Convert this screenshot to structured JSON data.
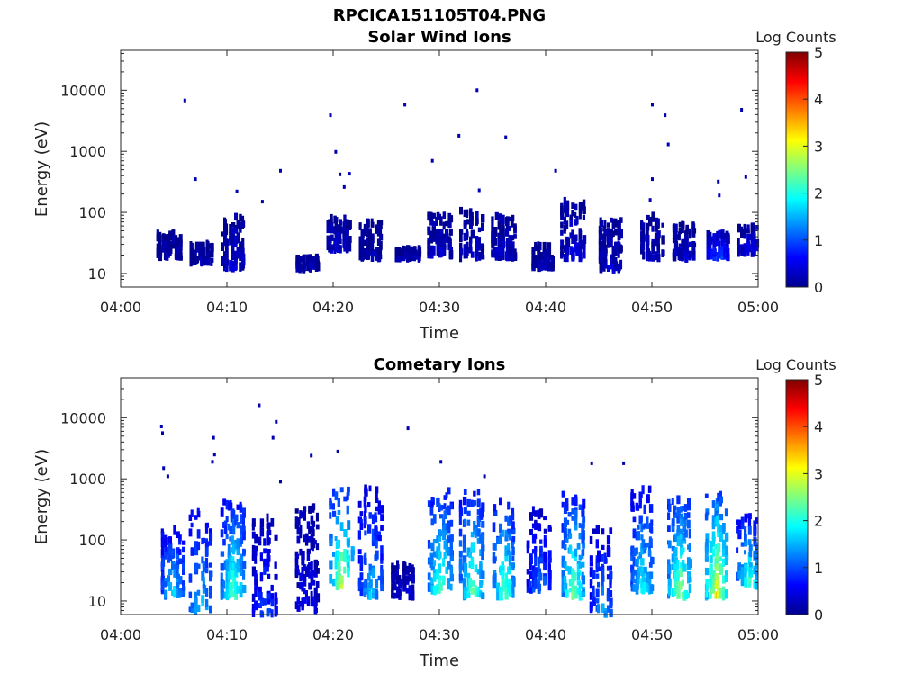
{
  "figure": {
    "title": "RPCICA151105T04.PNG"
  },
  "colorbar": {
    "label": "Log Counts",
    "range": [
      0,
      5
    ],
    "ticks": [
      "0",
      "1",
      "2",
      "3",
      "4",
      "5"
    ],
    "colormap": "jet"
  },
  "chart_data": [
    {
      "type": "heatmap",
      "title": "Solar Wind Ions",
      "xlabel": "Time",
      "ylabel": "Energy (eV)",
      "xlim": [
        "04:00",
        "05:00"
      ],
      "xticks": [
        "04:00",
        "04:10",
        "04:20",
        "04:30",
        "04:40",
        "04:50",
        "05:00"
      ],
      "yscale": "log",
      "ylim": [
        6,
        45000
      ],
      "yticks": [
        "10",
        "100",
        "1000",
        "10000"
      ],
      "clusters": [
        {
          "t": "04:04.5",
          "emin": 18,
          "emax": 45,
          "level": 0.2
        },
        {
          "t": "04:07.5",
          "emin": 15,
          "emax": 30,
          "level": 0.2
        },
        {
          "t": "04:10.5",
          "emin": 12,
          "emax": 95,
          "level": 0.3
        },
        {
          "t": "04:17.5",
          "emin": 12,
          "emax": 18,
          "level": 0.2
        },
        {
          "t": "04:20.5",
          "emin": 25,
          "emax": 85,
          "level": 0.3
        },
        {
          "t": "04:23.5",
          "emin": 18,
          "emax": 70,
          "level": 0.2
        },
        {
          "t": "04:27",
          "emin": 18,
          "emax": 25,
          "level": 0.2
        },
        {
          "t": "04:30",
          "emin": 20,
          "emax": 95,
          "level": 0.3
        },
        {
          "t": "04:33",
          "emin": 18,
          "emax": 110,
          "level": 0.3
        },
        {
          "t": "04:36",
          "emin": 18,
          "emax": 90,
          "level": 0.3
        },
        {
          "t": "04:39.7",
          "emin": 12,
          "emax": 30,
          "level": 0.2
        },
        {
          "t": "04:42.5",
          "emin": 18,
          "emax": 150,
          "level": 0.4
        },
        {
          "t": "04:46",
          "emin": 12,
          "emax": 75,
          "level": 0.3
        },
        {
          "t": "04:50",
          "emin": 18,
          "emax": 90,
          "level": 0.3
        },
        {
          "t": "04:53",
          "emin": 18,
          "emax": 65,
          "level": 0.3
        },
        {
          "t": "04:56.2",
          "emin": 18,
          "emax": 45,
          "level": 0.8
        },
        {
          "t": "04:59.2",
          "emin": 22,
          "emax": 60,
          "level": 0.4
        }
      ],
      "sparse_points": [
        {
          "t": "04:06",
          "e": 6800
        },
        {
          "t": "04:07",
          "e": 350
        },
        {
          "t": "04:10.9",
          "e": 220
        },
        {
          "t": "04:13.3",
          "e": 150
        },
        {
          "t": "04:15",
          "e": 480
        },
        {
          "t": "04:19.7",
          "e": 3900
        },
        {
          "t": "04:20.2",
          "e": 980
        },
        {
          "t": "04:20.6",
          "e": 420
        },
        {
          "t": "04:21.5",
          "e": 430
        },
        {
          "t": "04:21",
          "e": 260
        },
        {
          "t": "04:26.7",
          "e": 5800
        },
        {
          "t": "04:29.3",
          "e": 700
        },
        {
          "t": "04:31.8",
          "e": 1800
        },
        {
          "t": "04:33.5",
          "e": 10000
        },
        {
          "t": "04:33.7",
          "e": 230
        },
        {
          "t": "04:36.2",
          "e": 1700
        },
        {
          "t": "04:40.9",
          "e": 480
        },
        {
          "t": "04:50",
          "e": 5800
        },
        {
          "t": "04:50",
          "e": 350
        },
        {
          "t": "04:51.2",
          "e": 3900
        },
        {
          "t": "04:51.5",
          "e": 1300
        },
        {
          "t": "04:49.8",
          "e": 160
        },
        {
          "t": "04:56.2",
          "e": 320
        },
        {
          "t": "04:56.3",
          "e": 190
        },
        {
          "t": "04:58.4",
          "e": 4800
        },
        {
          "t": "04:58.8",
          "e": 380
        }
      ]
    },
    {
      "type": "heatmap",
      "title": "Cometary Ions",
      "xlabel": "Time",
      "ylabel": "Energy (eV)",
      "xlim": [
        "04:00",
        "05:00"
      ],
      "xticks": [
        "04:00",
        "04:10",
        "04:20",
        "04:30",
        "04:40",
        "04:50",
        "05:00"
      ],
      "yscale": "log",
      "ylim": [
        6,
        45000
      ],
      "yticks": [
        "10",
        "100",
        "1000",
        "10000"
      ],
      "clusters": [
        {
          "t": "04:04.8",
          "emin": 12,
          "emax": 150,
          "level": 1.5
        },
        {
          "t": "04:07.5",
          "emin": 7,
          "emax": 400,
          "level": 1.4
        },
        {
          "t": "04:10.5",
          "emin": 12,
          "emax": 450,
          "level": 1.9
        },
        {
          "t": "04:13.5",
          "emin": 6,
          "emax": 250,
          "level": 0.8
        },
        {
          "t": "04:17.5",
          "emin": 7,
          "emax": 350,
          "level": 0.5
        },
        {
          "t": "04:20.7",
          "emin": 18,
          "emax": 700,
          "level": 2.3
        },
        {
          "t": "04:23.5",
          "emin": 12,
          "emax": 700,
          "level": 1.3
        },
        {
          "t": "04:26.5",
          "emin": 12,
          "emax": 40,
          "level": 0.4
        },
        {
          "t": "04:30",
          "emin": 15,
          "emax": 700,
          "level": 1.9
        },
        {
          "t": "04:33",
          "emin": 12,
          "emax": 700,
          "level": 2.0
        },
        {
          "t": "04:36",
          "emin": 12,
          "emax": 450,
          "level": 1.9
        },
        {
          "t": "04:39.3",
          "emin": 15,
          "emax": 300,
          "level": 1.0
        },
        {
          "t": "04:42.5",
          "emin": 12,
          "emax": 600,
          "level": 2.0
        },
        {
          "t": "04:45.2",
          "emin": 6,
          "emax": 150,
          "level": 1.2
        },
        {
          "t": "04:49",
          "emin": 15,
          "emax": 700,
          "level": 1.6
        },
        {
          "t": "04:52.5",
          "emin": 12,
          "emax": 500,
          "level": 2.2
        },
        {
          "t": "04:56",
          "emin": 12,
          "emax": 600,
          "level": 2.6
        },
        {
          "t": "04:59",
          "emin": 18,
          "emax": 250,
          "level": 1.8
        }
      ],
      "sparse_points": [
        {
          "t": "04:03.8",
          "e": 7200
        },
        {
          "t": "04:03.9",
          "e": 5600
        },
        {
          "t": "04:04",
          "e": 1500
        },
        {
          "t": "04:04.4",
          "e": 1100
        },
        {
          "t": "04:08.7",
          "e": 4700
        },
        {
          "t": "04:08.8",
          "e": 2500
        },
        {
          "t": "04:08.6",
          "e": 1900
        },
        {
          "t": "04:13",
          "e": 16000
        },
        {
          "t": "04:14.6",
          "e": 8600
        },
        {
          "t": "04:14.3",
          "e": 4700
        },
        {
          "t": "04:15",
          "e": 900
        },
        {
          "t": "04:17.9",
          "e": 2400
        },
        {
          "t": "04:20.4",
          "e": 2800
        },
        {
          "t": "04:27",
          "e": 6700
        },
        {
          "t": "04:30.1",
          "e": 1900
        },
        {
          "t": "04:34.2",
          "e": 1100
        },
        {
          "t": "04:44.3",
          "e": 1800
        },
        {
          "t": "04:47.3",
          "e": 1800
        }
      ]
    }
  ]
}
